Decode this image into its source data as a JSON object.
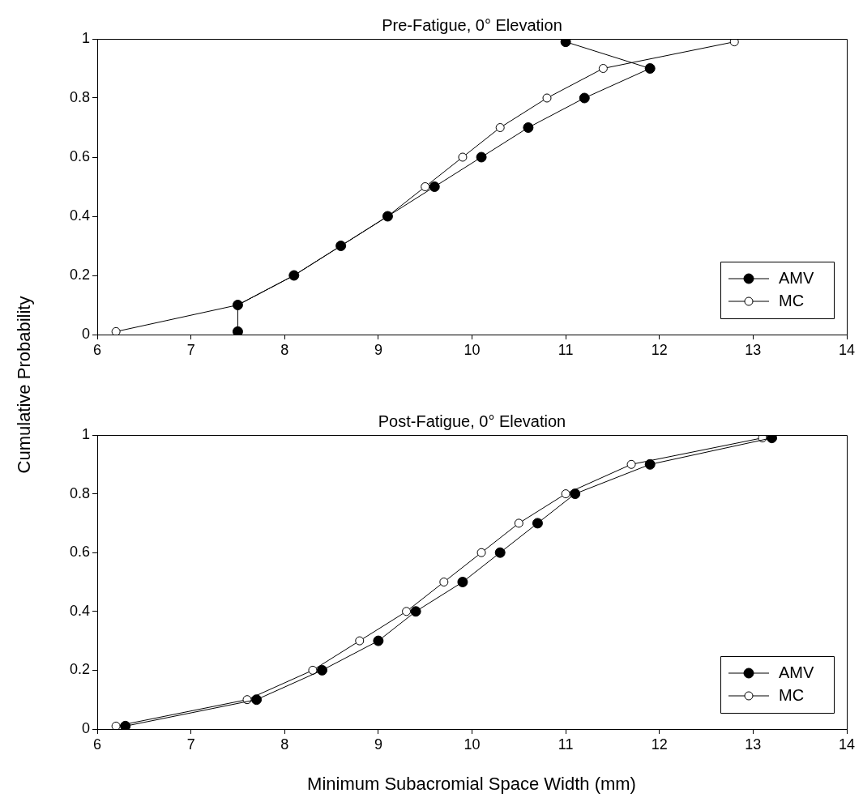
{
  "chart_data": [
    {
      "type": "line",
      "title": "Pre-Fatigue, 0° Elevation",
      "ylabel": "Cumulative Probability",
      "xlim": [
        6,
        14
      ],
      "xticks": [
        6,
        7,
        8,
        9,
        10,
        11,
        12,
        13,
        14
      ],
      "ylim": [
        0,
        1
      ],
      "yticks": [
        0,
        0.2,
        0.4,
        0.6,
        0.8,
        1
      ],
      "grid": false,
      "legend": "bottom right",
      "marker": "circle",
      "line_style": "solid",
      "series": [
        {
          "name": "AMV",
          "color": "#000000",
          "x": [
            7.5,
            7.5,
            8.1,
            8.6,
            9.1,
            9.6,
            10.1,
            10.6,
            11.2,
            11.9,
            11.0
          ],
          "values": [
            0.01,
            0.1,
            0.2,
            0.3,
            0.4,
            0.5,
            0.6,
            0.7,
            0.8,
            0.9,
            0.99
          ]
        },
        {
          "name": "MC",
          "color": "#000000",
          "x": [
            6.2,
            7.5,
            8.1,
            8.6,
            9.1,
            9.5,
            9.9,
            10.3,
            10.8,
            11.4,
            12.8
          ],
          "values": [
            0.01,
            0.1,
            0.2,
            0.3,
            0.4,
            0.5,
            0.6,
            0.7,
            0.8,
            0.9,
            0.99
          ]
        }
      ]
    },
    {
      "type": "line",
      "title": "Post-Fatigue, 0° Elevation",
      "xlabel": "Minimum Subacromial Space Width (mm)",
      "xlim": [
        6,
        14
      ],
      "xticks": [
        6,
        7,
        8,
        9,
        10,
        11,
        12,
        13,
        14
      ],
      "ylim": [
        0,
        1
      ],
      "yticks": [
        0,
        0.2,
        0.4,
        0.6,
        0.8,
        1
      ],
      "grid": false,
      "legend": "bottom right",
      "marker": "circle",
      "line_style": "solid",
      "series": [
        {
          "name": "AMV",
          "color": "#000000",
          "x": [
            6.3,
            7.7,
            8.4,
            9.0,
            9.4,
            9.9,
            10.3,
            10.7,
            11.1,
            11.9,
            13.2
          ],
          "values": [
            0.01,
            0.1,
            0.2,
            0.3,
            0.4,
            0.5,
            0.6,
            0.7,
            0.8,
            0.9,
            0.99
          ]
        },
        {
          "name": "MC",
          "color": "#000000",
          "x": [
            6.2,
            7.6,
            8.3,
            8.8,
            9.3,
            9.7,
            10.1,
            10.5,
            11.0,
            11.7,
            13.1
          ],
          "values": [
            0.01,
            0.1,
            0.2,
            0.3,
            0.4,
            0.5,
            0.6,
            0.7,
            0.8,
            0.9,
            0.99
          ]
        }
      ]
    }
  ]
}
